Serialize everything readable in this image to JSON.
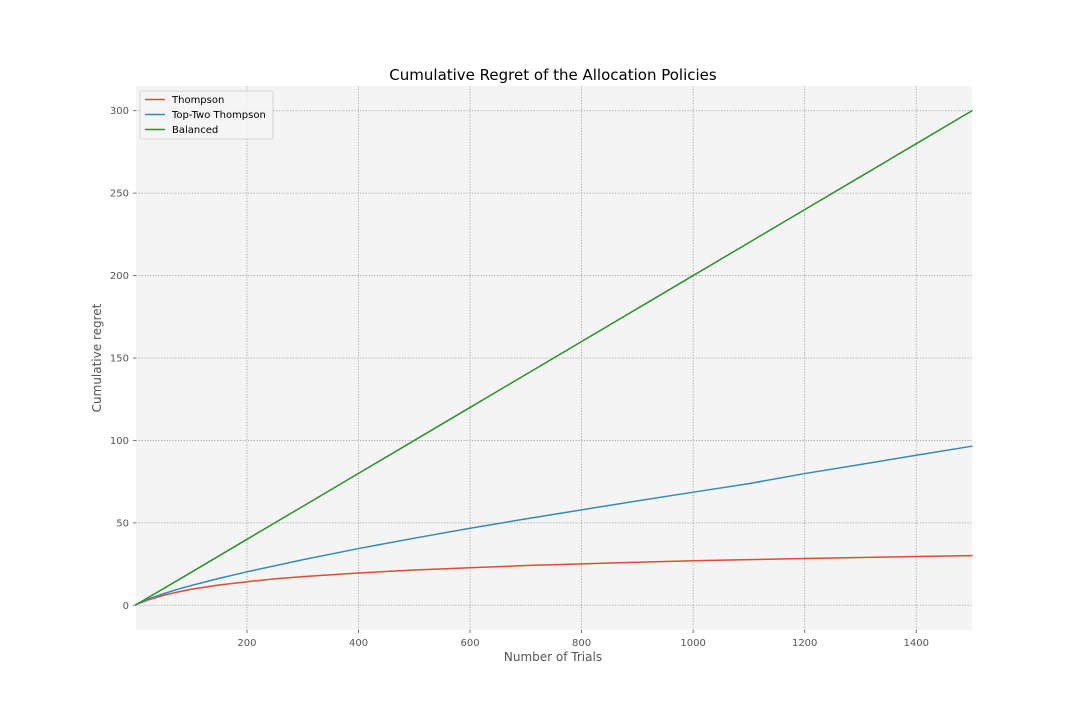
{
  "chart_data": {
    "type": "line",
    "title": "Cumulative Regret of the Allocation Policies",
    "xlabel": "Number of Trials",
    "ylabel": "Cumulative regret",
    "xlim": [
      1,
      1500
    ],
    "ylim": [
      -15,
      315
    ],
    "xticks": [
      200,
      400,
      600,
      800,
      1000,
      1200,
      1400
    ],
    "yticks": [
      0,
      50,
      100,
      150,
      200,
      250,
      300
    ],
    "grid": true,
    "legend_position": "top-left",
    "colors": {
      "background": "#f4f4f4",
      "grid": "#999999"
    },
    "series": [
      {
        "name": "Thompson",
        "color": "#e24a33",
        "x": [
          1,
          25,
          50,
          75,
          100,
          150,
          200,
          250,
          300,
          400,
          500,
          600,
          700,
          800,
          900,
          1000,
          1100,
          1200,
          1300,
          1400,
          1500
        ],
        "y": [
          0.5,
          3.5,
          6.0,
          8.0,
          9.7,
          12.3,
          14.3,
          16.0,
          17.4,
          19.6,
          21.4,
          22.8,
          24.1,
          25.1,
          26.1,
          27.0,
          27.7,
          28.4,
          29.0,
          29.6,
          30.1
        ]
      },
      {
        "name": "Top-Two Thompson",
        "color": "#348abd",
        "x": [
          1,
          25,
          50,
          75,
          100,
          150,
          200,
          300,
          400,
          500,
          600,
          700,
          800,
          900,
          1000,
          1100,
          1200,
          1300,
          1400,
          1500
        ],
        "y": [
          0.5,
          4.0,
          7.0,
          9.6,
          12.0,
          16.3,
          20.3,
          27.6,
          34.4,
          40.7,
          46.7,
          52.4,
          57.9,
          63.3,
          68.6,
          73.8,
          79.9,
          85.4,
          91.0,
          96.5
        ]
      },
      {
        "name": "Balanced",
        "color": "#2a912a",
        "x": [
          1,
          100,
          200,
          300,
          400,
          500,
          600,
          700,
          800,
          900,
          1000,
          1100,
          1200,
          1300,
          1400,
          1500
        ],
        "y": [
          0.3,
          20.0,
          40.0,
          60.0,
          80.0,
          100.0,
          120.0,
          140.0,
          160.0,
          180.0,
          200.0,
          220.0,
          240.0,
          260.0,
          280.0,
          300.0
        ]
      }
    ]
  }
}
